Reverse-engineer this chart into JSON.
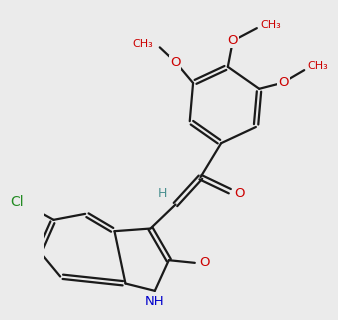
{
  "background_color": "#ebebeb",
  "bond_color": "#1a1a1a",
  "bond_width": 1.6,
  "atom_colors": {
    "O": "#cc0000",
    "N": "#0000cc",
    "Cl": "#228b22",
    "H_teal": "#4a9090",
    "C": "#1a1a1a"
  },
  "methoxy_labels": [
    "O",
    "methoxy"
  ],
  "font_size_atom": 9.5,
  "font_size_h": 9.0
}
